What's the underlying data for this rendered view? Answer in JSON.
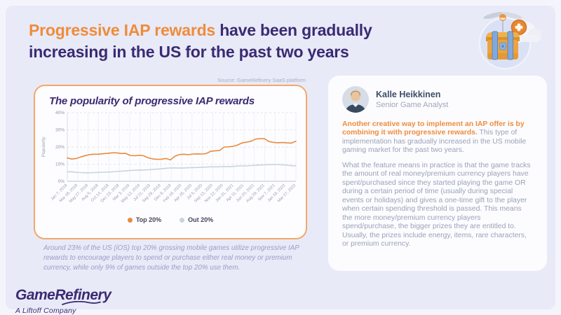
{
  "header": {
    "title_highlight": "Progressive IAP rewards",
    "title_rest_line1": " have been gradually",
    "title_line2": "increasing in the US for the past two years"
  },
  "source_note": "Source: GameRefinery SaaS platform",
  "chart_card": {
    "title": "The popularity of progressive IAP rewards"
  },
  "chart_data": {
    "type": "line",
    "title": "The popularity of progressive IAP rewards",
    "xlabel": "",
    "ylabel": "Popularity",
    "ylim": [
      0,
      40
    ],
    "yticks": [
      "0%",
      "10%",
      "20%",
      "30%",
      "40%"
    ],
    "grid": true,
    "legend_position": "bottom",
    "x_labels": [
      "Jan 7, 2018",
      "Mar 18, 2018",
      "May 27, 2018",
      "Aug 5, 2018",
      "Oct 14, 2018",
      "Dec 23, 2018",
      "Mar 3, 2019",
      "May 12, 2019",
      "Jul 21, 2019",
      "Sep 29, 2019",
      "Dec 8, 2019",
      "Feb 16, 2020",
      "Apr 26, 2020",
      "Jul 5, 2020",
      "Sep 13, 2020",
      "Nov 22, 2020",
      "Jan 31, 2021",
      "Apr 11, 2021",
      "Jun 20, 2021",
      "Aug 29, 2021",
      "Nov 7, 2021",
      "Jan 16, 2022",
      "Mar 27, 2022"
    ],
    "series": [
      {
        "name": "Top 20%",
        "color": "#E98A3E",
        "values": [
          13.6,
          13.0,
          13.3,
          14.2,
          15.0,
          15.6,
          15.8,
          15.8,
          16.1,
          16.3,
          16.6,
          16.6,
          16.2,
          16.3,
          15.1,
          14.9,
          15.2,
          14.9,
          13.7,
          13.1,
          12.8,
          12.9,
          13.3,
          12.5,
          14.6,
          15.6,
          15.8,
          15.5,
          15.9,
          16.0,
          15.9,
          16.2,
          17.5,
          17.8,
          18.0,
          20.0,
          20.1,
          20.4,
          21.2,
          22.4,
          22.8,
          23.4,
          24.6,
          24.9,
          24.8,
          23.2,
          22.7,
          22.5,
          22.6,
          22.4,
          22.3,
          23.4
        ]
      },
      {
        "name": "Out 20%",
        "color": "#C9D3DE",
        "values": [
          5.5,
          5.6,
          5.2,
          5.1,
          5.0,
          5.0,
          5.1,
          5.2,
          5.3,
          5.4,
          5.5,
          5.7,
          5.9,
          6.1,
          6.3,
          6.5,
          6.5,
          6.6,
          6.7,
          6.9,
          7.1,
          7.3,
          7.6,
          7.8,
          7.8,
          7.7,
          7.8,
          7.9,
          8.0,
          8.1,
          8.2,
          8.3,
          8.5,
          8.4,
          8.5,
          8.6,
          8.5,
          8.7,
          8.9,
          9.0,
          9.0,
          9.2,
          9.3,
          9.5,
          9.6,
          9.7,
          9.8,
          9.8,
          9.6,
          9.4,
          9.1,
          9.0
        ]
      }
    ]
  },
  "caption": "Around 23% of the US (iOS) top 20% grossing mobile games utilize progressive IAP rewards to encourage players to spend or purchase either real money or premium currency, while only 9% of games outside the top 20% use them.",
  "analyst": {
    "name": "Kalle Heikkinen",
    "role": "Senior Game Analyst"
  },
  "quote": {
    "highlight": "Another creative way to implement an IAP offer is by combining it with progressive rewards.",
    "rest": " This type of implementation has gradually increased in the US mobile gaming market for the past two years.",
    "paragraph2": "What the feature means in practice is that the game tracks the amount of real money/premium currency players have spent/purchased since they started playing the game OR during a certain period of time (usually during special events or holidays) and gives a one-time gift to the player when certain spending threshold is passed. This means the more money/premium currency players spend/purchase, the bigger prizes they are entitled to. Usually, the prizes include energy, items, rare characters, or premium currency."
  },
  "footer": {
    "logo": "GameRefinery",
    "logo_sub": "A Liftoff Company"
  },
  "colors": {
    "accent_orange": "#EF8C3A",
    "brand_purple": "#3B2A72",
    "line_top20": "#E98A3E",
    "line_out20": "#C9D3DE",
    "chart_border": "#F2A869"
  },
  "icons": {
    "hero": "treasure-chest-delivery-icon",
    "avatar": "analyst-avatar"
  }
}
